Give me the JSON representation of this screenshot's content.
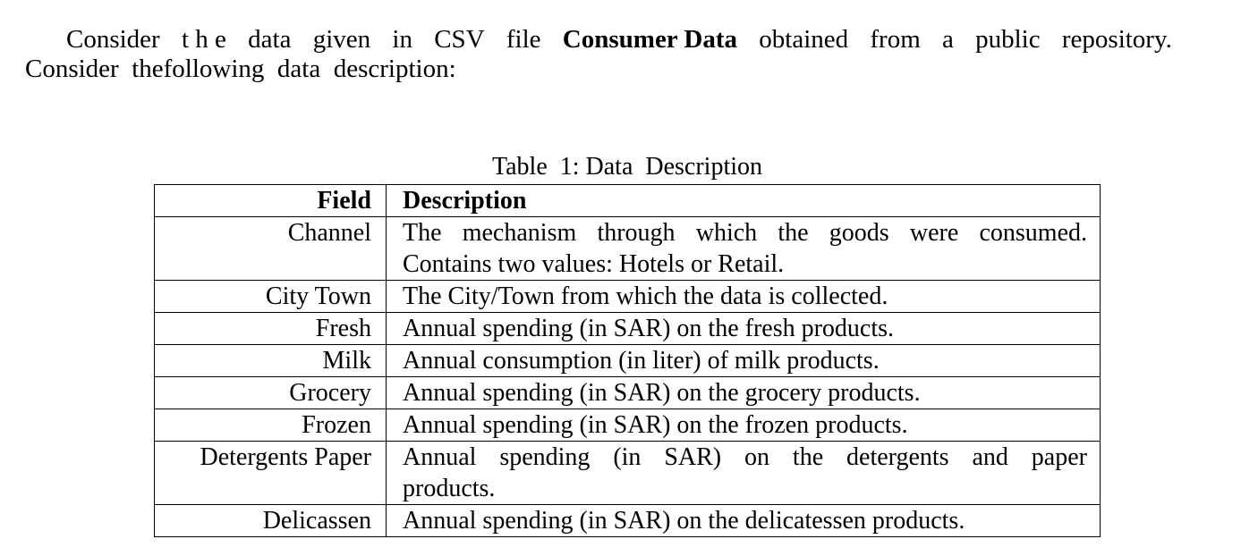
{
  "intro": {
    "line1_words": [
      "Consider",
      "t h e",
      "data",
      "given",
      "in",
      "CSV",
      "file"
    ],
    "bold_term": "Consumer Data",
    "line1_tail_words": [
      "obtained",
      "from",
      "a",
      "public",
      "repository."
    ],
    "line2": "Consider  thefollowing  data  description:"
  },
  "table": {
    "caption": "Table  1: Data  Description",
    "headers": {
      "field": "Field",
      "description": "Description"
    },
    "rows": [
      {
        "field": "Channel",
        "description_l1": "The mechanism through which the goods were consumed.",
        "description_l2": "Contains two values: Hotels or Retail."
      },
      {
        "field": "City Town",
        "description": "The City/Town from which the data is collected."
      },
      {
        "field": "Fresh",
        "description": "Annual spending (in SAR) on the fresh products."
      },
      {
        "field": "Milk",
        "description": "Annual consumption (in liter) of milk products."
      },
      {
        "field": "Grocery",
        "description": "Annual spending (in SAR) on the grocery products."
      },
      {
        "field": "Frozen",
        "description": "Annual spending (in SAR) on the frozen products."
      },
      {
        "field": "Detergents Paper",
        "description_l1": "Annual spending (in SAR) on the detergents and paper",
        "description_l2": "products."
      },
      {
        "field": "Delicassen",
        "description": "Annual spending (in SAR) on the delicatessen products."
      }
    ]
  }
}
